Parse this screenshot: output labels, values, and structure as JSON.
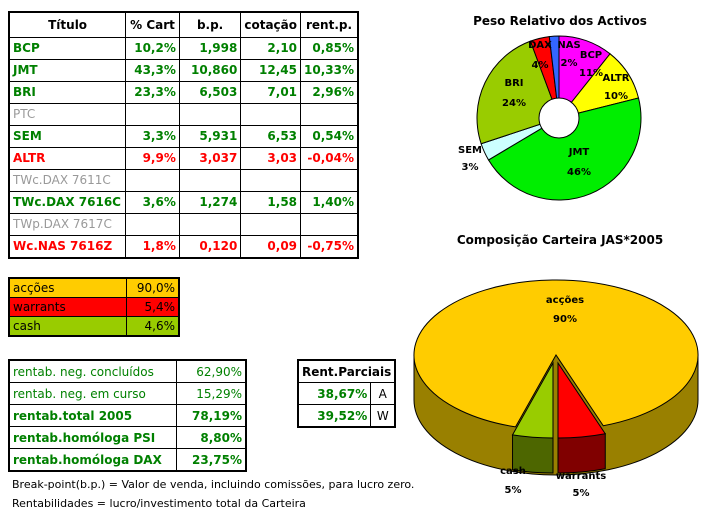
{
  "holdings": {
    "headers": [
      "Título",
      "% Cart",
      "b.p.",
      "cotação",
      "rent.p."
    ],
    "rows": [
      {
        "titulo": "BCP",
        "cart": "10,2%",
        "bp": "1,998",
        "cot": "2,10",
        "rent": "0,85%",
        "style": "g"
      },
      {
        "titulo": "JMT",
        "cart": "43,3%",
        "bp": "10,860",
        "cot": "12,45",
        "rent": "10,33%",
        "style": "g"
      },
      {
        "titulo": "BRI",
        "cart": "23,3%",
        "bp": "6,503",
        "cot": "7,01",
        "rent": "2,96%",
        "style": "g"
      },
      {
        "titulo": "PTC",
        "cart": "",
        "bp": "",
        "cot": "",
        "rent": "",
        "style": "gr"
      },
      {
        "titulo": "SEM",
        "cart": "3,3%",
        "bp": "5,931",
        "cot": "6,53",
        "rent": "0,54%",
        "style": "g"
      },
      {
        "titulo": "ALTR",
        "cart": "9,9%",
        "bp": "3,037",
        "cot": "3,03",
        "rent": "-0,04%",
        "style": "r"
      },
      {
        "titulo": "TWc.DAX 7611C",
        "cart": "",
        "bp": "",
        "cot": "",
        "rent": "",
        "style": "gr"
      },
      {
        "titulo": "TWc.DAX 7616C",
        "cart": "3,6%",
        "bp": "1,274",
        "cot": "1,58",
        "rent": "1,40%",
        "style": "g"
      },
      {
        "titulo": "TWp.DAX 7617C",
        "cart": "",
        "bp": "",
        "cot": "",
        "rent": "",
        "style": "gr"
      },
      {
        "titulo": "Wc.NAS 7616Z",
        "cart": "1,8%",
        "bp": "0,120",
        "cot": "0,09",
        "rent": "-0,75%",
        "style": "r"
      }
    ]
  },
  "allocation": [
    {
      "label": "acções",
      "value": "90,0%",
      "color": "#ffcc00"
    },
    {
      "label": "warrants",
      "value": "5,4%",
      "color": "#ff0000"
    },
    {
      "label": "cash",
      "value": "4,6%",
      "color": "#99cc00"
    }
  ],
  "returns": [
    {
      "label": "rentab. neg. concluídos",
      "value": "62,90%",
      "bold": false
    },
    {
      "label": "rentab. neg. em curso",
      "value": "15,29%",
      "bold": false
    },
    {
      "label": "rentab.total 2005",
      "value": "78,19%",
      "bold": true
    },
    {
      "label": "rentab.homóloga PSI",
      "value": "8,80%",
      "bold": true
    },
    {
      "label": "rentab.homóloga DAX",
      "value": "23,75%",
      "bold": true
    }
  ],
  "partial": {
    "title": "Rent.Parciais",
    "rows": [
      {
        "value": "38,67%",
        "tag": "A"
      },
      {
        "value": "39,52%",
        "tag": "W"
      }
    ]
  },
  "notes": [
    "Break-point(b.p.) = Valor de venda, incluindo comissões, para lucro zero.",
    "Rentabilidades = lucro/investimento total da Carteira"
  ],
  "chart_data": [
    {
      "type": "pie",
      "title": "Peso Relativo dos Activos",
      "donut": true,
      "slices": [
        {
          "label": "BCP",
          "pct": "11%",
          "value": 10.2,
          "color": "#ff00ff"
        },
        {
          "label": "ALTR",
          "pct": "10%",
          "value": 9.9,
          "color": "#ffff00"
        },
        {
          "label": "JMT",
          "pct": "46%",
          "value": 43.3,
          "color": "#00ee00"
        },
        {
          "label": "SEM",
          "pct": "3%",
          "value": 3.3,
          "color": "#ccffff"
        },
        {
          "label": "BRI",
          "pct": "24%",
          "value": 23.3,
          "color": "#99cc00"
        },
        {
          "label": "DAX",
          "pct": "4%",
          "value": 3.6,
          "color": "#ff0000"
        },
        {
          "label": "NAS",
          "pct": "2%",
          "value": 1.8,
          "color": "#3366ff"
        }
      ]
    },
    {
      "type": "pie",
      "title": "Composição Carteira JAS*2005",
      "3d": true,
      "slices": [
        {
          "label": "acções",
          "pct": "90%",
          "value": 90.0,
          "color": "#ffcc00"
        },
        {
          "label": "warrants",
          "pct": "5%",
          "value": 5.4,
          "color": "#ff0000"
        },
        {
          "label": "cash",
          "pct": "5%",
          "value": 4.6,
          "color": "#99cc00"
        }
      ]
    }
  ]
}
